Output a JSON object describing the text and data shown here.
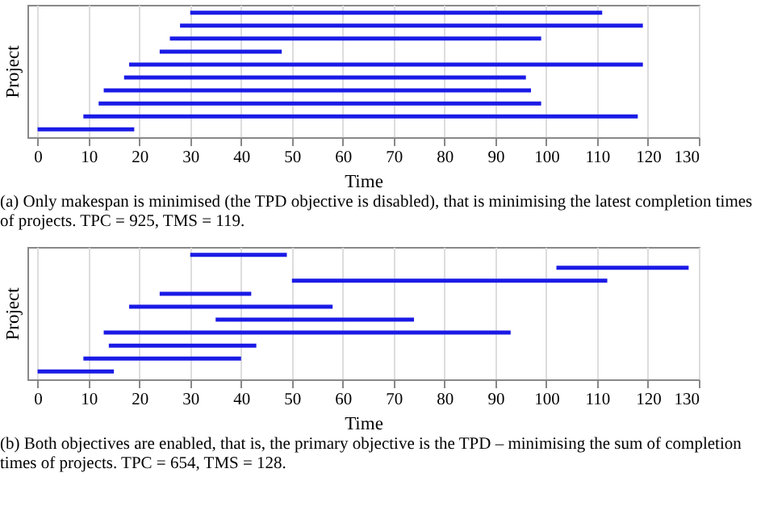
{
  "chart_data": [
    {
      "type": "bar",
      "orientation": "horizontal",
      "categories": [
        null,
        null,
        null,
        null,
        null,
        null,
        null,
        null,
        null,
        null
      ],
      "base": [
        30,
        28,
        26,
        24,
        18,
        17,
        13,
        12,
        9,
        0
      ],
      "values": [
        81,
        91,
        73,
        24,
        101,
        79,
        84,
        87,
        109,
        19
      ],
      "color": "#1a1ae6",
      "xlim": [
        -2,
        130
      ],
      "xticks": [
        0,
        10,
        20,
        30,
        40,
        50,
        60,
        70,
        80,
        90,
        100,
        110,
        120,
        130
      ],
      "xlabel": "Time",
      "ylabel": "Project",
      "grid": "x",
      "tick_labels": "x",
      "annotations": [
        "(a) Only makespan is minimised (the TPD objective is disabled), that is minimising the latest completion times of projects. TPC = 925, TMS = 119."
      ]
    },
    {
      "type": "bar",
      "orientation": "horizontal",
      "categories": [
        null,
        null,
        null,
        null,
        null,
        null,
        null,
        null,
        null,
        null
      ],
      "base": [
        30,
        102,
        50,
        24,
        18,
        35,
        13,
        14,
        9,
        0
      ],
      "values": [
        19,
        26,
        62,
        18,
        40,
        39,
        80,
        29,
        31,
        15
      ],
      "color": "#1a1ae6",
      "xlim": [
        -2,
        130
      ],
      "xticks": [
        0,
        10,
        20,
        30,
        40,
        50,
        60,
        70,
        80,
        90,
        100,
        110,
        120,
        130
      ],
      "xlabel": "Time",
      "ylabel": "Project",
      "grid": "x",
      "tick_labels": "x",
      "annotations": [
        "(b) Both objectives are enabled, that is, the primary objective is the TPD – minimising the sum of completion times of projects. TPC = 654, TMS = 128."
      ]
    }
  ]
}
